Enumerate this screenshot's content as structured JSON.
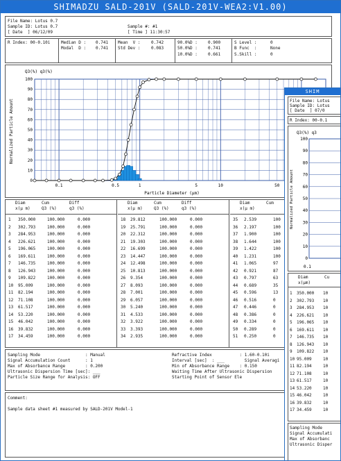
{
  "window": {
    "title": "SHIMADZU SALD-201V (SALD-201V-WEA2:V1.00)"
  },
  "header": {
    "line1": "File Name: Lotus 0.7",
    "line2": "Sample ID: Lotus 0.7",
    "line3": "[ Date  ] 06/12/09",
    "sample_no": "Sample #: #1",
    "time": "[ Time ] 11:30:57"
  },
  "stats": {
    "index": "R Index: 00-0.10i",
    "median_label": "Median D :",
    "median_value": "0.741",
    "modal_label": "Modal  D :",
    "modal_value": "0.741",
    "mean_label": "Mean  V :",
    "mean_value": "0.742",
    "std_label": "Std Dev :",
    "std_value": "0.083",
    "d90_label": "90.0%D :",
    "d90_value": "0.900",
    "d50_label": "50.0%D :",
    "d50_value": "0.741",
    "d10_label": "10.0%D :",
    "d10_value": "0.661",
    "slevel_label": "S Level :",
    "slevel_value": "0",
    "func_label": "B Func  :",
    "func_value": "None",
    "skill_label": "S.Skill :",
    "skill_value": "0"
  },
  "chart_data": {
    "type": "bar",
    "y_header": "Q3(%) q3(%)",
    "ylabel": "Normalized Particle Amount",
    "xlabel": "Particle Diameter (μm)",
    "x_scale": "log",
    "xlim": [
      0.05,
      200
    ],
    "ylim": [
      0,
      100
    ],
    "y_ticks": [
      "0",
      "10",
      "20",
      "30",
      "40",
      "50",
      "60",
      "70",
      "80",
      "90",
      "100"
    ],
    "x_ticks": [
      "0.1",
      "0.5",
      "1",
      "5",
      "10",
      "50",
      "100"
    ],
    "cumulative_x": [
      0.05,
      0.07,
      0.1,
      0.14,
      0.2,
      0.28,
      0.35,
      0.45,
      0.5,
      0.56,
      0.62,
      0.67,
      0.72,
      0.78,
      0.85,
      0.93,
      1.0,
      1.1,
      1.3,
      1.6,
      2.0,
      3.0,
      5.0,
      10,
      20,
      50,
      100,
      150
    ],
    "cumulative_y": [
      0,
      0,
      0,
      0,
      0,
      0,
      0,
      0.5,
      2,
      6,
      14,
      26,
      40,
      55,
      70,
      83,
      92,
      97,
      99.5,
      100,
      100,
      100,
      100,
      100,
      100,
      100,
      100,
      100
    ],
    "freq_x": [
      0.5,
      0.56,
      0.62,
      0.67,
      0.72,
      0.78,
      0.85,
      0.93,
      1.0
    ],
    "freq_y": [
      2,
      5,
      10,
      14,
      15,
      14,
      10,
      6,
      2
    ]
  },
  "table": {
    "headers": [
      {
        "c1": "Diam",
        "c1b": "x(μ m)",
        "c2": "Cum",
        "c2b": "Q3 (%)",
        "c3": "Diff",
        "c3b": "q3 (%)"
      },
      {
        "c1": "Diam",
        "c1b": "x(μ m)",
        "c2": "Cum",
        "c2b": "Q3 (%)",
        "c3": "Diff",
        "c3b": "q3 (%)"
      },
      {
        "c1": "Diam",
        "c1b": "x(μ m)",
        "c2": "Cum",
        "c2b": "",
        "c3": "",
        "c3b": ""
      }
    ],
    "col1": [
      [
        "1",
        "350.000",
        "100.000",
        "0.000"
      ],
      [
        "2",
        "302.793",
        "100.000",
        "0.000"
      ],
      [
        "3",
        "284.953",
        "100.000",
        "0.000"
      ],
      [
        "4",
        "226.621",
        "100.000",
        "0.000"
      ],
      [
        "5",
        "196.065",
        "100.000",
        "0.000"
      ],
      [
        "6",
        "169.611",
        "100.000",
        "0.000"
      ],
      [
        "7",
        "146.735",
        "100.000",
        "0.000"
      ],
      [
        "8",
        "126.943",
        "100.000",
        "0.000"
      ],
      [
        "9",
        "109.822",
        "100.000",
        "0.000"
      ],
      [
        "10",
        "95.009",
        "100.000",
        "0.000"
      ],
      [
        "11",
        "82.194",
        "100.000",
        "0.000"
      ],
      [
        "12",
        "71.108",
        "100.000",
        "0.000"
      ],
      [
        "13",
        "61.517",
        "100.000",
        "0.000"
      ],
      [
        "14",
        "53.220",
        "100.000",
        "0.000"
      ],
      [
        "15",
        "46.042",
        "100.000",
        "0.000"
      ],
      [
        "16",
        "39.832",
        "100.000",
        "0.000"
      ],
      [
        "17",
        "34.459",
        "100.000",
        "0.000"
      ]
    ],
    "col2": [
      [
        "18",
        "29.812",
        "100.000",
        "0.000"
      ],
      [
        "19",
        "25.791",
        "100.000",
        "0.000"
      ],
      [
        "20",
        "22.312",
        "100.000",
        "0.000"
      ],
      [
        "21",
        "19.303",
        "100.000",
        "0.000"
      ],
      [
        "22",
        "16.699",
        "100.000",
        "0.000"
      ],
      [
        "23",
        "14.447",
        "100.000",
        "0.000"
      ],
      [
        "24",
        "12.498",
        "100.000",
        "0.000"
      ],
      [
        "25",
        "10.813",
        "100.000",
        "0.000"
      ],
      [
        "26",
        "9.354",
        "100.000",
        "0.000"
      ],
      [
        "27",
        "8.093",
        "100.000",
        "0.000"
      ],
      [
        "28",
        "7.001",
        "100.000",
        "0.000"
      ],
      [
        "29",
        "6.057",
        "100.000",
        "0.000"
      ],
      [
        "30",
        "5.240",
        "100.000",
        "0.000"
      ],
      [
        "31",
        "4.533",
        "100.000",
        "0.000"
      ],
      [
        "32",
        "3.922",
        "100.000",
        "0.000"
      ],
      [
        "33",
        "3.393",
        "100.000",
        "0.000"
      ],
      [
        "34",
        "2.935",
        "100.000",
        "0.000"
      ]
    ],
    "col3": [
      [
        "35",
        "2.539",
        "100"
      ],
      [
        "36",
        "2.197",
        "100"
      ],
      [
        "37",
        "1.900",
        "100"
      ],
      [
        "38",
        "1.644",
        "100"
      ],
      [
        "39",
        "1.422",
        "100"
      ],
      [
        "40",
        "1.231",
        "100"
      ],
      [
        "41",
        "1.065",
        "97"
      ],
      [
        "42",
        "0.921",
        "87"
      ],
      [
        "43",
        "0.797",
        "63"
      ],
      [
        "44",
        "0.689",
        "35"
      ],
      [
        "45",
        "0.596",
        "13"
      ],
      [
        "46",
        "0.516",
        "0"
      ],
      [
        "47",
        "0.446",
        "0"
      ],
      [
        "48",
        "0.386",
        "0"
      ],
      [
        "49",
        "0.334",
        "0"
      ],
      [
        "50",
        "0.289",
        "0"
      ],
      [
        "51",
        "0.250",
        "0"
      ]
    ]
  },
  "conditions": {
    "l1": "Sampling Mode                  : Manual",
    "l2": "Signal Accumulation Count      : 1",
    "l3": "Max of Absorbance Range        : 0.200",
    "l4": "Ultrasonic Dispersion Time [sec]: ___",
    "l5": "Particle Size Range for Analysis: OFF",
    "r1": "Refractive Index           : 1.60-0.10i",
    "r2": "Interval [sec]  : ___        Signal Averagi",
    "r3": "Min of Absorbance Range    : 0.150",
    "r4": "Waiting Time After Ultrasonic Dispersion",
    "r5": "Starting Point of Sensor Ele"
  },
  "comment": {
    "label": "Comment:",
    "text": "Sample data sheet #1 measured by SALD-201V Model-1"
  },
  "window2": {
    "title": "SHIM",
    "h1": "File Name: Lotus",
    "h2": "Sample ID: Lotus",
    "h3": "[ Date  ] 07/0",
    "idx": "R Index: 00-0.1",
    "y_header": "Q3(%) q3",
    "ylabel": "Normalized Particle Amount",
    "y_ticks": [
      "100",
      "90",
      "80",
      "70",
      "60",
      "50",
      "40",
      "30",
      "20",
      "10",
      "0"
    ],
    "xtick": "0.1",
    "th1": "Diam",
    "th1b": "x(μm)",
    "th2": "Cu",
    "rows": [
      [
        "1",
        "350.000",
        "10"
      ],
      [
        "2",
        "302.793",
        "10"
      ],
      [
        "3",
        "284.953",
        "10"
      ],
      [
        "4",
        "226.621",
        "10"
      ],
      [
        "5",
        "196.065",
        "10"
      ],
      [
        "6",
        "169.611",
        "10"
      ],
      [
        "7",
        "146.735",
        "10"
      ],
      [
        "8",
        "126.943",
        "10"
      ],
      [
        "9",
        "109.822",
        "10"
      ],
      [
        "10",
        "95.009",
        "10"
      ],
      [
        "11",
        "82.194",
        "10"
      ],
      [
        "12",
        "71.108",
        "10"
      ],
      [
        "13",
        "61.517",
        "10"
      ],
      [
        "14",
        "53.220",
        "10"
      ],
      [
        "15",
        "46.042",
        "10"
      ],
      [
        "16",
        "39.832",
        "10"
      ],
      [
        "17",
        "34.459",
        "10"
      ]
    ],
    "c1": "Sampling Mode",
    "c2": "Signal Accumulati",
    "c3": "Max of Absorbanc",
    "c4": "Ultrasonic Disper"
  },
  "colors": {
    "titlebar": "#1f6fd1",
    "bars": "#1e90e0",
    "grid": "#3b5ca8"
  }
}
